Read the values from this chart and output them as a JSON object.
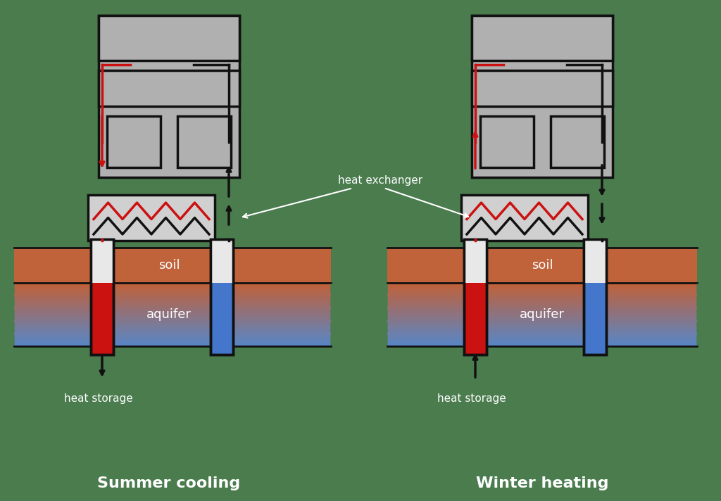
{
  "bg_color": "#4a7c4e",
  "title_summer": "Summer cooling",
  "title_winter": "Winter heating",
  "label_soil": "soil",
  "label_aquifer": "aquifer",
  "label_heat_storage": "heat storage",
  "label_heat_exchanger": "heat exchanger",
  "soil_color": "#c0623a",
  "aquifer_color_top": "#c0623a",
  "aquifer_color_bot": "#5588cc",
  "building_fill": "#b0b0b0",
  "building_stroke": "#111111",
  "hx_fill": "#d0d0d0",
  "red_line": "#cc1111",
  "black_line": "#111111",
  "hot_well_fill": "#cc1111",
  "cold_well_fill": "#4477cc",
  "well_top_fill": "#e8e8e8"
}
